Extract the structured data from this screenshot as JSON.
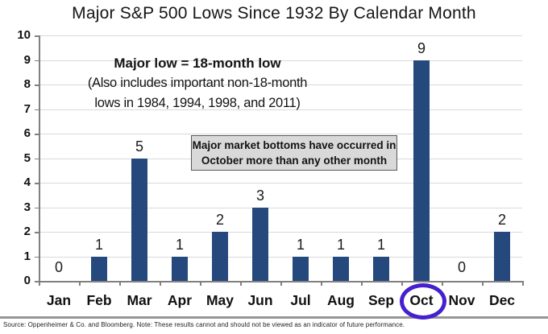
{
  "title": "Major S&P 500 Lows Since 1932 By Calendar Month",
  "annotation": {
    "line1": "Major  low = 18-month low",
    "line2": "(Also includes important non-18-month",
    "line3": "lows in 1984, 1994, 1998, and 2011)"
  },
  "callout": {
    "line1": "Major market bottoms have occurred in",
    "line2": "October more than any other month"
  },
  "chart_data": {
    "type": "bar",
    "title": "Major S&P 500 Lows Since 1932 By Calendar Month",
    "categories": [
      "Jan",
      "Feb",
      "Mar",
      "Apr",
      "May",
      "Jun",
      "Jul",
      "Aug",
      "Sep",
      "Oct",
      "Nov",
      "Dec"
    ],
    "values": [
      0,
      1,
      5,
      1,
      2,
      3,
      1,
      1,
      1,
      9,
      0,
      2
    ],
    "xlabel": "",
    "ylabel": "",
    "ylim": [
      0,
      10
    ],
    "ytick_step": 1,
    "grid": true,
    "legend": false,
    "data_labels": true,
    "bar_color": "#26497d",
    "highlight_category": "Oct",
    "highlight_color": "#4520ce"
  },
  "footer": {
    "source": "Source: Oppenheimer & Co. and Bloomberg. Note: These results cannot and should not be viewed as an indicator of future performance."
  }
}
